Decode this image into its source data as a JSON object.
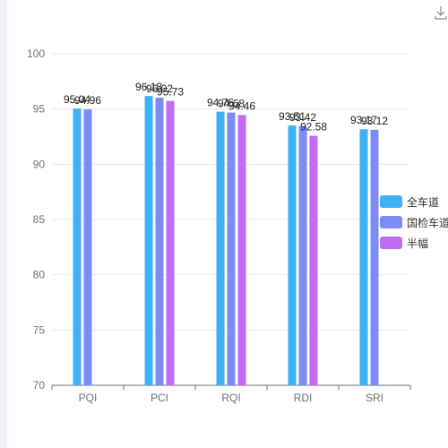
{
  "toolbar": {
    "download_icon": "download-icon"
  },
  "chart_data": {
    "type": "bar",
    "categories": [
      "PQI",
      "PCI",
      "RQI",
      "RDI",
      "SRI"
    ],
    "series": [
      {
        "name": "全车道",
        "color": "#3fb1f7",
        "values": [
          95.04,
          96.18,
          94.76,
          93.51,
          93.17
        ]
      },
      {
        "name": "国检车道",
        "color": "#7d8cf5",
        "values": [
          94.96,
          96.02,
          94.68,
          93.42,
          93.12
        ]
      },
      {
        "name": "半幅",
        "color": "#c06cf5",
        "values": [
          null,
          95.73,
          94.46,
          92.58,
          null
        ]
      }
    ],
    "ylim": [
      70,
      100
    ],
    "yticks": [
      70,
      75,
      80,
      85,
      90,
      95,
      100
    ],
    "legend_position": "right",
    "grid": true
  }
}
